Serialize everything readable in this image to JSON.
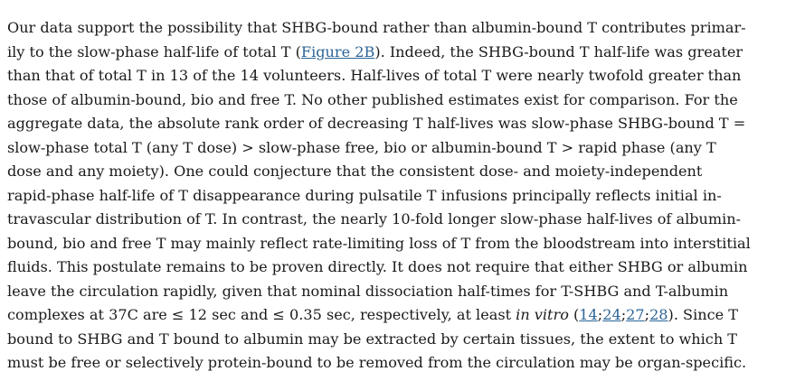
{
  "paragraph": {
    "l1": "Our data support the possibility that SHBG-bound rather than albumin-bound T contributes primar-",
    "l2a": "ily to the slow-phase half-life of total T (",
    "l2_link": "Figure 2B",
    "l2b": "). Indeed, the SHBG-bound T half-life was greater",
    "l3": "than that of total T in 13 of the 14 volunteers. Half-lives of total T were nearly twofold greater than",
    "l4": "those of albumin-bound, bio and free T. No other published estimates exist for comparison. For the",
    "l5": "aggregate data, the absolute rank order of decreasing T half-lives was slow-phase SHBG-bound T =",
    "l6": "slow-phase total T (any T dose) > slow-phase free, bio or albumin-bound T > rapid phase (any T",
    "l7": "dose and any moiety). One could conjecture that the consistent dose- and moiety-independent",
    "l8": "rapid-phase half-life of T disappearance during pulsatile T infusions principally reflects initial in-",
    "l9": "travascular distribution of T. In contrast, the nearly 10-fold longer slow-phase half-lives of albumin-",
    "l10": "bound, bio and free T may mainly reflect rate-limiting loss of T from the bloodstream into interstitial",
    "l11": "fluids. This postulate remains to be proven directly. It does not require that either SHBG or albumin",
    "l12": "leave the circulation rapidly, given that nominal dissociation half-times for T-SHBG and T-albumin",
    "l13a": "complexes at 37C are ≤ 12 sec and ≤ 0.35 sec, respectively, at least ",
    "l13_em": "in vitro",
    "l13b": " (",
    "ref1": "14",
    "sep1": ";",
    "ref2": "24",
    "sep2": ";",
    "ref3": "27",
    "sep3": ";",
    "ref4": "28",
    "l13c": "). Since T",
    "l14": "bound to SHBG and T bound to albumin may be extracted by certain tissues, the extent to which T",
    "l15": "must be free or selectively protein-bound to be removed from the circulation may be organ-specific."
  },
  "colors": {
    "text": "#1a1a1a",
    "link": "#2a6496",
    "background": "#ffffff"
  }
}
